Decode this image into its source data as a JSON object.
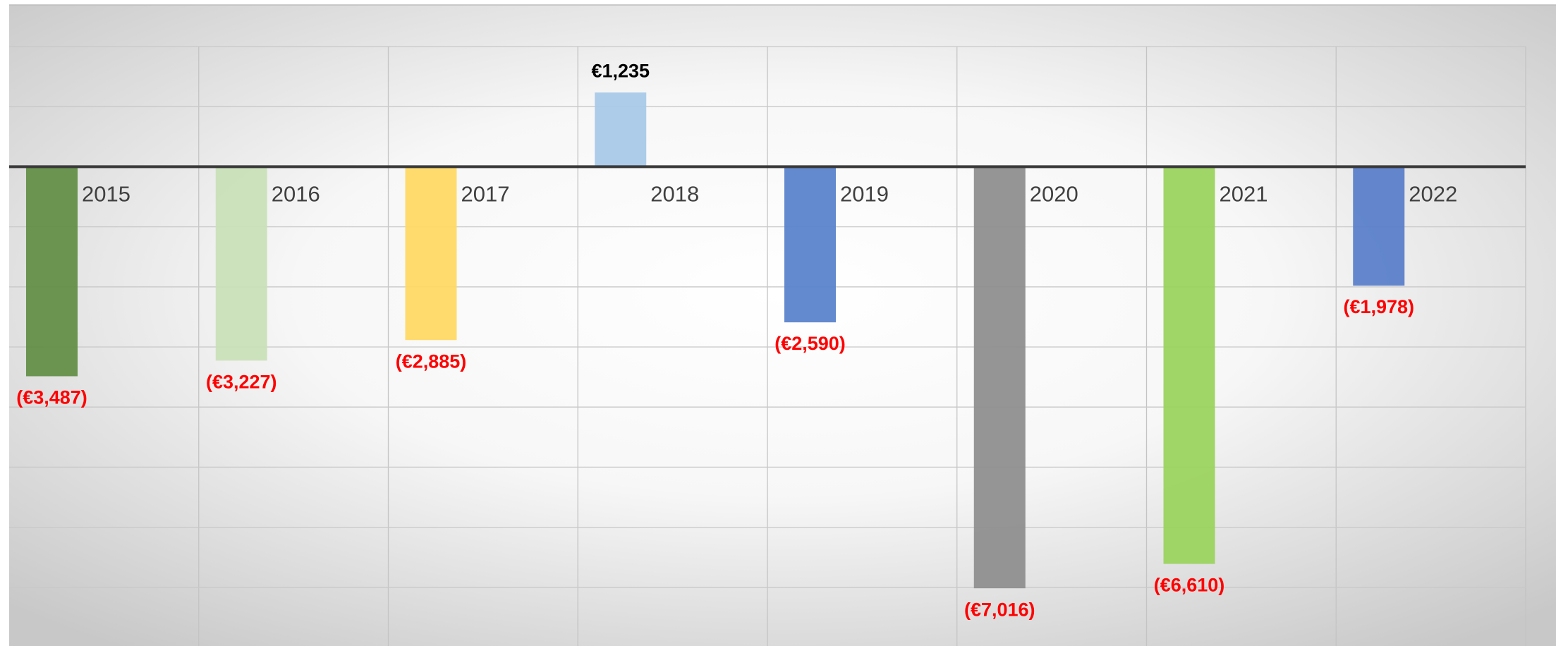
{
  "chart_data": {
    "type": "bar",
    "categories": [
      "2015",
      "2016",
      "2017",
      "2018",
      "2019",
      "2020",
      "2021",
      "2022"
    ],
    "values": [
      -3487,
      -3227,
      -2885,
      1235,
      -2590,
      -7016,
      -6610,
      -1978
    ],
    "value_labels": [
      "(€3,487)",
      "(€3,227)",
      "(€2,885)",
      "€1,235",
      "(€2,590)",
      "(€7,016)",
      "(€6,610)",
      "(€1,978)"
    ],
    "colors": [
      "#638f48",
      "#c9e0b8",
      "#ffd966",
      "#a9c9e8",
      "#5b84cc",
      "#8f8f8f",
      "#9bd35f",
      "#5b7fca"
    ],
    "negative_label_color": "#ff0000",
    "positive_label_color": "#000000",
    "ylim": [
      -8000,
      2000
    ],
    "yticks": [
      -8000,
      -7000,
      -6000,
      -5000,
      -4000,
      -3000,
      -2000,
      -1000,
      0,
      1000,
      2000
    ],
    "grid": true
  }
}
